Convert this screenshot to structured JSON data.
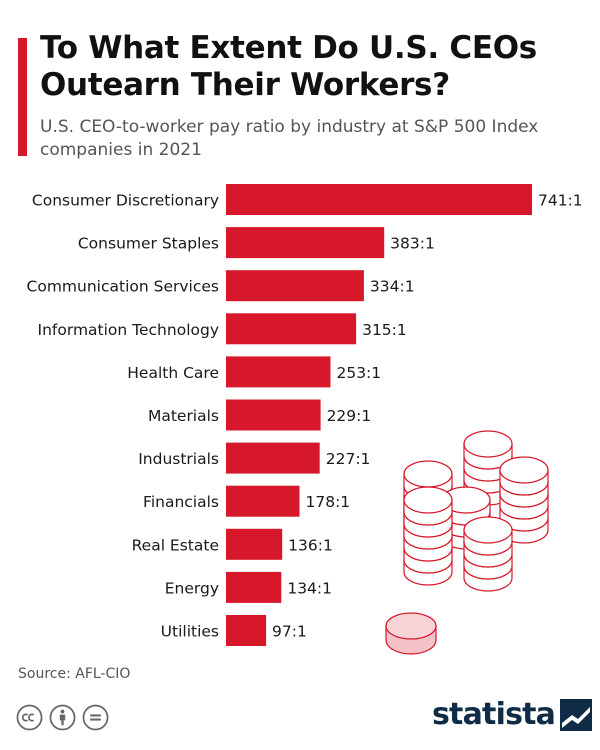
{
  "header": {
    "title": "To What Extent Do U.S. CEOs Outearn Their Workers?",
    "subtitle": "U.S. CEO-to-worker pay ratio by industry at S&P 500 Index companies in 2021"
  },
  "chart_data": {
    "type": "bar",
    "orientation": "horizontal",
    "title": "To What Extent Do U.S. CEOs Outearn Their Workers?",
    "subtitle": "U.S. CEO-to-worker pay ratio by industry at S&P 500 Index companies in 2021",
    "categories": [
      "Consumer Discretionary",
      "Consumer Staples",
      "Communication Services",
      "Information Technology",
      "Health Care",
      "Materials",
      "Industrials",
      "Financials",
      "Real Estate",
      "Energy",
      "Utilities"
    ],
    "values": [
      741,
      383,
      334,
      315,
      253,
      229,
      227,
      178,
      136,
      134,
      97
    ],
    "value_labels": [
      "741:1",
      "383:1",
      "334:1",
      "315:1",
      "253:1",
      "229:1",
      "227:1",
      "178:1",
      "136:1",
      "134:1",
      "97:1"
    ],
    "xlim": [
      0,
      741
    ],
    "xlabel": "",
    "ylabel": "",
    "grid": false,
    "bar_color": "#d7182a"
  },
  "footer": {
    "source": "Source: AFL-CIO",
    "brand": "statista",
    "license_icons": [
      "creative-commons-icon",
      "attribution-icon",
      "no-derivatives-icon"
    ]
  },
  "colors": {
    "accent": "#d7182a",
    "brand": "#0f2b46",
    "text": "#1a1a1a",
    "muted": "#555555"
  }
}
